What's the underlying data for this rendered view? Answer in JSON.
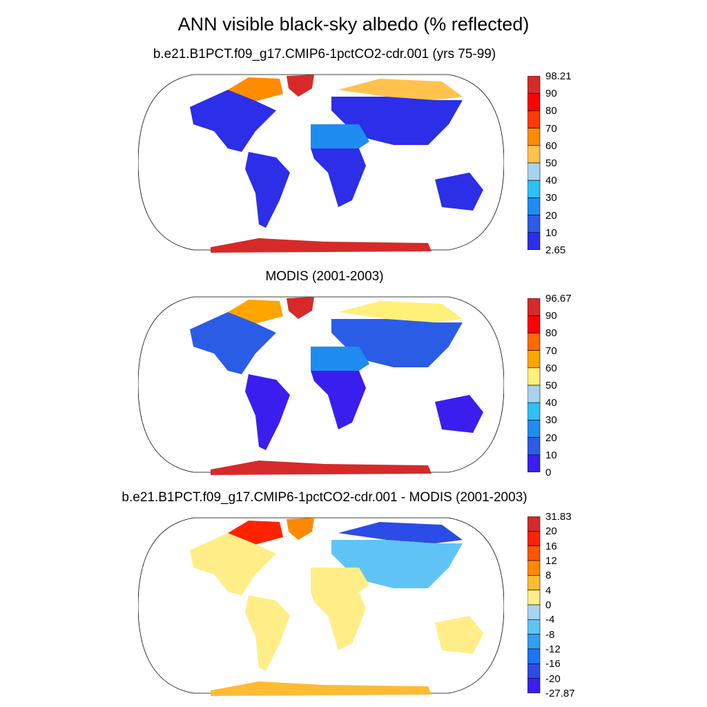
{
  "title": "ANN visible black-sky albedo (% reflected)",
  "panels": [
    {
      "title": "b.e21.B1PCT.f09_g17.CMIP6-1pctCO2-cdr.001 (yrs 75-99)",
      "colorbar": {
        "labels": [
          "98.21",
          "90",
          "80",
          "70",
          "60",
          "50",
          "40",
          "30",
          "20",
          "10",
          "2.65"
        ],
        "colors": [
          "#d62a2a",
          "#ff0000",
          "#ff3b00",
          "#ff8c00",
          "#ffc34d",
          "#a6d4f0",
          "#2fc0f5",
          "#1e8cf0",
          "#2b5ce6",
          "#2c2ee8"
        ]
      }
    },
    {
      "title": "MODIS (2001-2003)",
      "colorbar": {
        "labels": [
          "96.67",
          "90",
          "80",
          "70",
          "60",
          "50",
          "40",
          "30",
          "20",
          "10",
          "0"
        ],
        "colors": [
          "#d62a2a",
          "#ff0000",
          "#ff6a00",
          "#ffa500",
          "#fff07a",
          "#a6d4f0",
          "#2fc0f5",
          "#1e8cf0",
          "#2b5ce6",
          "#3a1ef0"
        ]
      }
    },
    {
      "title": "b.e21.B1PCT.f09_g17.CMIP6-1pctCO2-cdr.001 - MODIS (2001-2003)",
      "colorbar": {
        "labels": [
          "31.83",
          "20",
          "16",
          "12",
          "8",
          "4",
          "0",
          "-4",
          "-8",
          "-12",
          "-16",
          "-20",
          "-27.87"
        ],
        "colors": [
          "#d62a2a",
          "#ff2200",
          "#ff5500",
          "#ff8800",
          "#ffbb33",
          "#ffee88",
          "#a6d4f0",
          "#5fc4f5",
          "#2fa0f5",
          "#1e74f0",
          "#2b4ce6",
          "#3a1ef0"
        ]
      }
    }
  ]
}
